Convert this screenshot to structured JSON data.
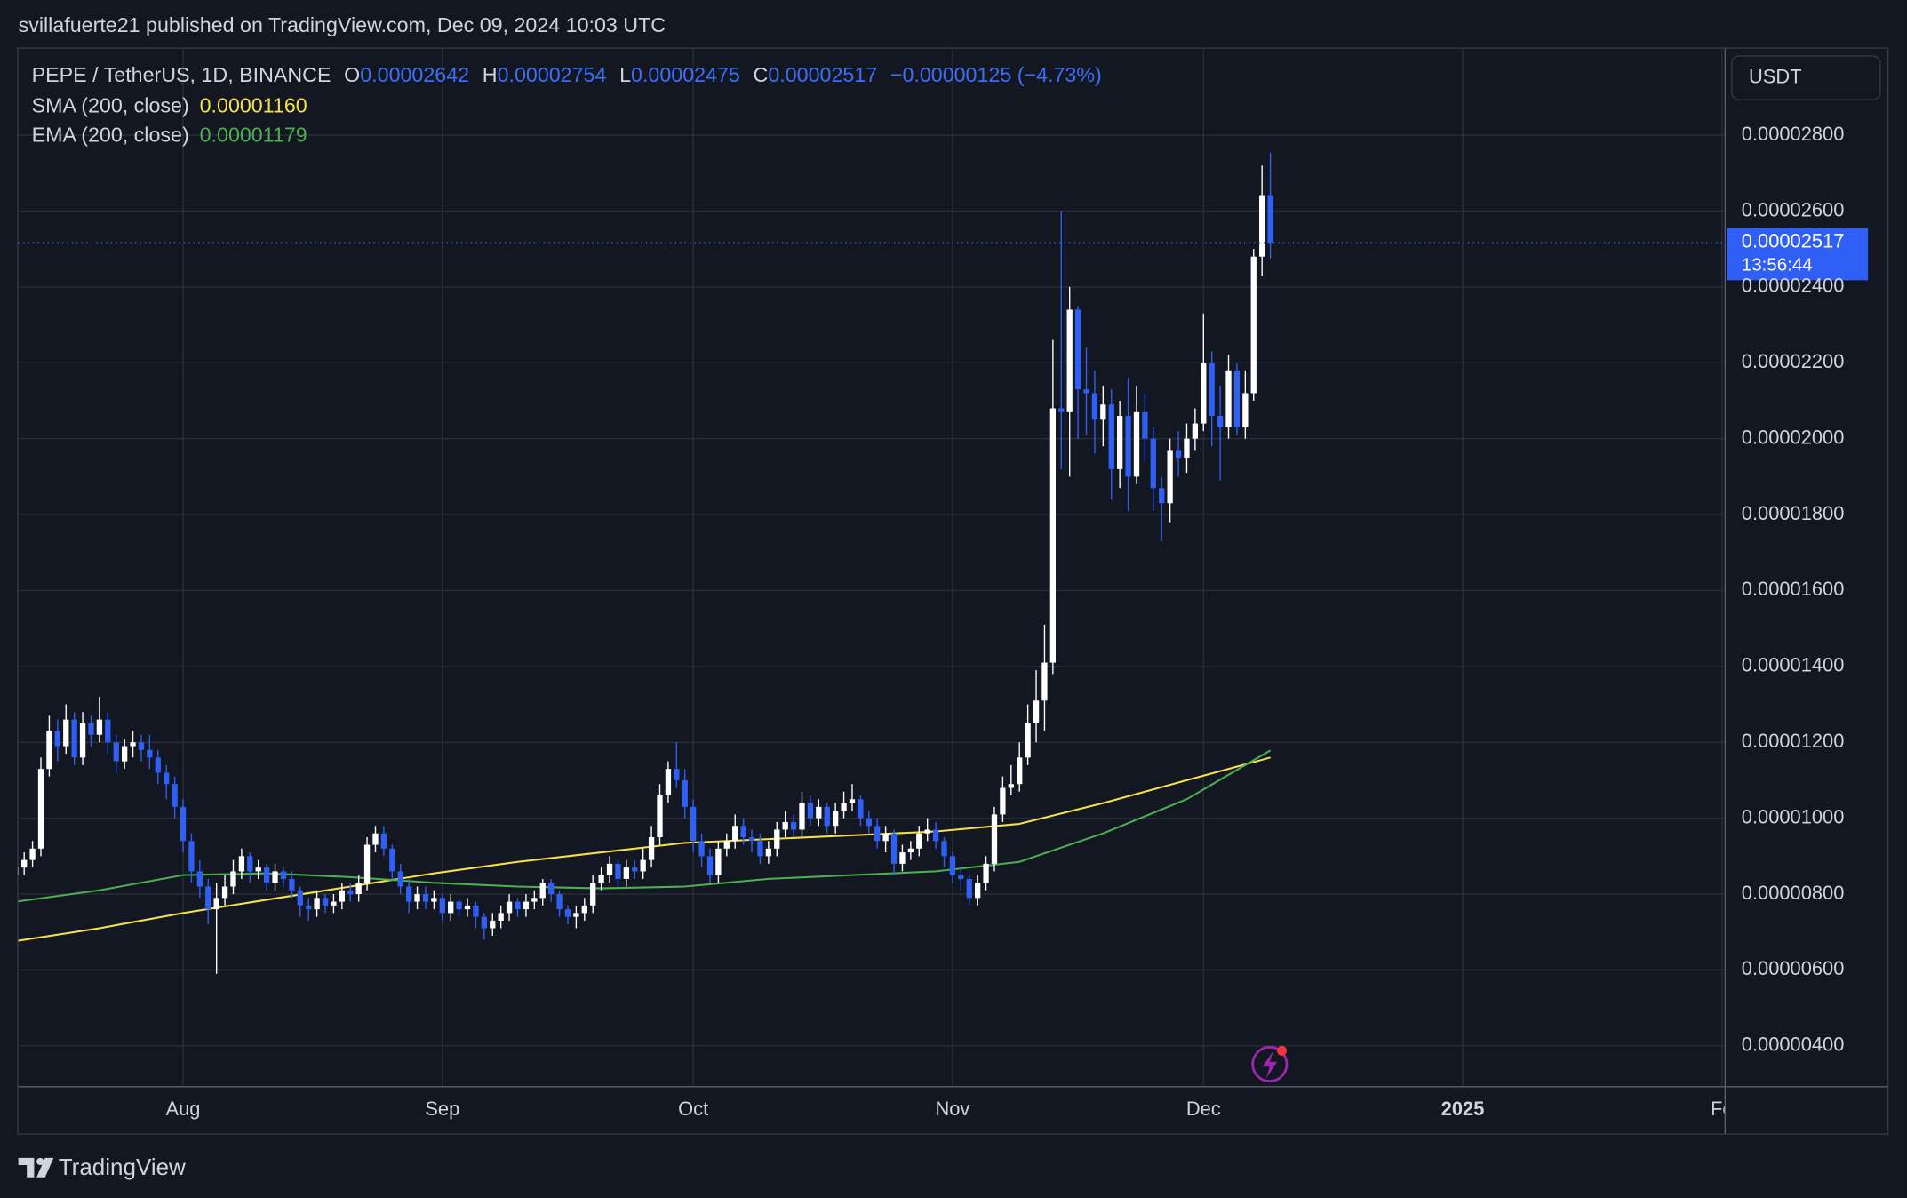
{
  "chart_data": {
    "type": "candlestick",
    "publisher": "svillafuerte21 published on TradingView.com, Dec 09, 2024 10:03 UTC",
    "symbol": "PEPE / TetherUS, 1D, BINANCE",
    "ohlc_header": [
      {
        "label": "O",
        "value": "0.00002642"
      },
      {
        "label": "H",
        "value": "0.00002754"
      },
      {
        "label": "L",
        "value": "0.00002475"
      },
      {
        "label": "C",
        "value": "0.00002517"
      }
    ],
    "change": "−0.00000125 (−4.73%)",
    "currency": "USDT",
    "last_price_label": "0.00002517",
    "countdown": "13:56:44",
    "brand": "TradingView",
    "up_color": "#ffffff",
    "down_color": "#2f5ff5",
    "grid": true,
    "ylim": [
      2.94e-06,
      3.028e-05
    ],
    "yticks": [
      {
        "value": 4e-06,
        "label": "0.00000400"
      },
      {
        "value": 6e-06,
        "label": "0.00000600"
      },
      {
        "value": 8e-06,
        "label": "0.00000800"
      },
      {
        "value": 1e-05,
        "label": "0.00001000"
      },
      {
        "value": 1.2e-05,
        "label": "0.00001200"
      },
      {
        "value": 1.4e-05,
        "label": "0.00001400"
      },
      {
        "value": 1.6e-05,
        "label": "0.00001600"
      },
      {
        "value": 1.8e-05,
        "label": "0.00001800"
      },
      {
        "value": 2e-05,
        "label": "0.00002000"
      },
      {
        "value": 2.2e-05,
        "label": "0.00002200"
      },
      {
        "value": 2.4e-05,
        "label": "0.00002400"
      },
      {
        "value": 2.6e-05,
        "label": "0.00002600"
      },
      {
        "value": 2.8e-05,
        "label": "0.00002800"
      }
    ],
    "xlim": [
      0.3,
      204.3
    ],
    "xticks": [
      {
        "value": 20,
        "label": "Aug"
      },
      {
        "value": 51,
        "label": "Sep"
      },
      {
        "value": 81,
        "label": "Oct"
      },
      {
        "value": 112,
        "label": "Nov"
      },
      {
        "value": 142,
        "label": "Dec"
      },
      {
        "value": 173,
        "label": "2025"
      },
      {
        "value": 204,
        "label": "Fe"
      }
    ],
    "open": [
      8.5e-06,
      8.7e-06,
      8.9e-06,
      9.2e-06,
      1.13e-05,
      1.23e-05,
      1.19e-05,
      1.26e-05,
      1.16e-05,
      1.25e-05,
      1.22e-05,
      1.26e-05,
      1.2e-05,
      1.15e-05,
      1.19e-05,
      1.2e-05,
      1.18e-05,
      1.16e-05,
      1.12e-05,
      1.09e-05,
      1.03e-05,
      9.4e-06,
      8.6e-06,
      8.2e-06,
      7.6e-06,
      7.9e-06,
      8.2e-06,
      8.6e-06,
      9e-06,
      8.6e-06,
      8.7e-06,
      8.3e-06,
      8.6e-06,
      8.4e-06,
      8.1e-06,
      7.7e-06,
      7.6e-06,
      7.9e-06,
      7.7e-06,
      7.8e-06,
      8.1e-06,
      8e-06,
      8.3e-06,
      9.3e-06,
      9.6e-06,
      9.2e-06,
      8.6e-06,
      8.2e-06,
      7.8e-06,
      8e-06,
      7.8e-06,
      7.9e-06,
      7.5e-06,
      7.8e-06,
      7.6e-06,
      7.7e-06,
      7.4e-06,
      7.1e-06,
      7.3e-06,
      7.5e-06,
      7.8e-06,
      7.6e-06,
      7.8e-06,
      7.9e-06,
      8.3e-06,
      8e-06,
      7.6e-06,
      7.4e-06,
      7.5e-06,
      7.7e-06,
      8.3e-06,
      8.5e-06,
      8.8e-06,
      8.4e-06,
      8.7e-06,
      8.6e-06,
      8.9e-06,
      9.5e-06,
      1.06e-05,
      1.13e-05,
      1.1e-05,
      1.03e-05,
      9.4e-06,
      9e-06,
      8.5e-06,
      9.2e-06,
      9.4e-06,
      9.8e-06,
      9.5e-06,
      9.4e-06,
      9e-06,
      9.2e-06,
      9.7e-06,
      9.9e-06,
      9.7e-06,
      1.04e-05,
      1e-05,
      1.03e-05,
      9.8e-06,
      1.02e-05,
      1.04e-05,
      1.05e-05,
      1e-05,
      9.8e-06,
      9.4e-06,
      9.6e-06,
      8.8e-06,
      9.1e-06,
      9.2e-06,
      9.6e-06,
      9.7e-06,
      9.4e-06,
      9e-06,
      8.5e-06,
      8.4e-06,
      7.9e-06,
      8.3e-06,
      8.8e-06,
      1.01e-05,
      1.08e-05,
      1.09e-05,
      1.16e-05,
      1.25e-05,
      1.31e-05,
      1.41e-05,
      2.08e-05,
      2.07e-05,
      2.34e-05,
      2.13e-05,
      2.12e-05,
      2.05e-05,
      2.09e-05,
      1.92e-05,
      2.06e-05,
      1.9e-05,
      2.07e-05,
      2e-05,
      1.87e-05,
      1.83e-05,
      1.97e-05,
      1.95e-05,
      2e-05,
      2.04e-05,
      2.2e-05,
      2.06e-05,
      2.03e-05,
      2.18e-05,
      2.03e-05,
      2.12e-05,
      2.48e-05,
      2.642e-05
    ],
    "high": [
      8.9e-06,
      9.1e-06,
      9.4e-06,
      1.16e-05,
      1.27e-05,
      1.26e-05,
      1.3e-05,
      1.28e-05,
      1.28e-05,
      1.27e-05,
      1.32e-05,
      1.28e-05,
      1.22e-05,
      1.21e-05,
      1.23e-05,
      1.22e-05,
      1.22e-05,
      1.18e-05,
      1.14e-05,
      1.11e-05,
      1.05e-05,
      9.6e-06,
      8.9e-06,
      8.4e-06,
      8.3e-06,
      8.5e-06,
      8.9e-06,
      9.2e-06,
      9.1e-06,
      8.9e-06,
      8.8e-06,
      8.8e-06,
      8.7e-06,
      8.6e-06,
      8.2e-06,
      7.9e-06,
      8.1e-06,
      8e-06,
      8e-06,
      8.3e-06,
      8.3e-06,
      8.5e-06,
      9.5e-06,
      9.8e-06,
      9.8e-06,
      9.3e-06,
      8.8e-06,
      8.4e-06,
      8.2e-06,
      8.2e-06,
      8.1e-06,
      8e-06,
      8e-06,
      7.9e-06,
      7.9e-06,
      7.8e-06,
      7.5e-06,
      7.5e-06,
      7.7e-06,
      8e-06,
      7.9e-06,
      8e-06,
      8.1e-06,
      8.4e-06,
      8.4e-06,
      8.1e-06,
      7.7e-06,
      7.7e-06,
      7.9e-06,
      8.5e-06,
      8.7e-06,
      9e-06,
      8.9e-06,
      8.9e-06,
      8.9e-06,
      9.2e-06,
      9.8e-06,
      1.09e-05,
      1.15e-05,
      1.2e-05,
      1.13e-05,
      1.05e-05,
      9.6e-06,
      9.2e-06,
      9.4e-06,
      9.6e-06,
      1.01e-05,
      1e-05,
      9.7e-06,
      9.6e-06,
      9.4e-06,
      9.9e-06,
      1.02e-05,
      1.01e-05,
      1.07e-05,
      1.06e-05,
      1.05e-05,
      1.04e-05,
      1.04e-05,
      1.07e-05,
      1.09e-05,
      1.06e-05,
      1.02e-05,
      1e-05,
      9.8e-06,
      9.7e-06,
      9.3e-06,
      9.4e-06,
      9.8e-06,
      1e-05,
      9.9e-06,
      9.5e-06,
      9.1e-06,
      8.7e-06,
      8.5e-06,
      8.5e-06,
      9e-06,
      1.03e-05,
      1.11e-05,
      1.14e-05,
      1.2e-05,
      1.3e-05,
      1.39e-05,
      1.51e-05,
      2.26e-05,
      2.6e-05,
      2.4e-05,
      2.35e-05,
      2.24e-05,
      2.18e-05,
      2.14e-05,
      2.13e-05,
      2.1e-05,
      2.16e-05,
      2.14e-05,
      2.12e-05,
      2.03e-05,
      1.9e-05,
      2e-05,
      2.02e-05,
      2.04e-05,
      2.08e-05,
      2.33e-05,
      2.23e-05,
      2.14e-05,
      2.22e-05,
      2.2e-05,
      2.18e-05,
      2.5e-05,
      2.72e-05,
      2.754e-05
    ],
    "low": [
      8.3e-06,
      8.5e-06,
      8.7e-06,
      9e-06,
      1.11e-05,
      1.15e-05,
      1.17e-05,
      1.14e-05,
      1.14e-05,
      1.19e-05,
      1.2e-05,
      1.17e-05,
      1.12e-05,
      1.13e-05,
      1.16e-05,
      1.15e-05,
      1.13e-05,
      1.09e-05,
      1.05e-05,
      1e-05,
      9.1e-06,
      8.3e-06,
      7.9e-06,
      7.2e-06,
      5.9e-06,
      7.7e-06,
      8e-06,
      8.4e-06,
      8.3e-06,
      8.4e-06,
      8.1e-06,
      8.1e-06,
      8.2e-06,
      7.9e-06,
      7.4e-06,
      7.3e-06,
      7.4e-06,
      7.5e-06,
      7.5e-06,
      7.6e-06,
      7.8e-06,
      7.8e-06,
      8.1e-06,
      9.1e-06,
      9e-06,
      8.4e-06,
      8e-06,
      7.5e-06,
      7.6e-06,
      7.6e-06,
      7.6e-06,
      7.3e-06,
      7.3e-06,
      7.4e-06,
      7.4e-06,
      7.1e-06,
      6.8e-06,
      6.9e-06,
      7.1e-06,
      7.3e-06,
      7.4e-06,
      7.4e-06,
      7.6e-06,
      7.7e-06,
      7.8e-06,
      7.4e-06,
      7.2e-06,
      7.1e-06,
      7.3e-06,
      7.5e-06,
      8.1e-06,
      8.3e-06,
      8.2e-06,
      8.2e-06,
      8.4e-06,
      8.4e-06,
      8.7e-06,
      9.3e-06,
      1.04e-05,
      1.08e-05,
      1e-05,
      9.1e-06,
      8.7e-06,
      8.3e-06,
      8.3e-06,
      9e-06,
      9.2e-06,
      9.3e-06,
      9.1e-06,
      8.8e-06,
      8.8e-06,
      9e-06,
      9.5e-06,
      9.5e-06,
      9.5e-06,
      9.8e-06,
      9.8e-06,
      9.6e-06,
      9.6e-06,
      1e-05,
      1.02e-05,
      9.8e-06,
      9.6e-06,
      9.2e-06,
      9.1e-06,
      8.5e-06,
      8.6e-06,
      8.9e-06,
      9e-06,
      9.4e-06,
      9.2e-06,
      8.7e-06,
      8.3e-06,
      8.1e-06,
      7.7e-06,
      7.7e-06,
      8.1e-06,
      8.6e-06,
      9.9e-06,
      1.06e-05,
      1.07e-05,
      1.14e-05,
      1.2e-05,
      1.23e-05,
      1.38e-05,
      1.92e-05,
      1.9e-05,
      2e-05,
      2.01e-05,
      1.96e-05,
      1.98e-05,
      1.84e-05,
      1.87e-05,
      1.81e-05,
      1.88e-05,
      1.94e-05,
      1.81e-05,
      1.73e-05,
      1.78e-05,
      1.9e-05,
      1.91e-05,
      1.97e-05,
      2.02e-05,
      1.98e-05,
      1.89e-05,
      2e-05,
      2.01e-05,
      2e-05,
      2.1e-05,
      2.43e-05,
      2.475e-05
    ],
    "close": [
      8.7e-06,
      8.9e-06,
      9.2e-06,
      1.13e-05,
      1.23e-05,
      1.19e-05,
      1.26e-05,
      1.16e-05,
      1.25e-05,
      1.22e-05,
      1.26e-05,
      1.2e-05,
      1.15e-05,
      1.19e-05,
      1.2e-05,
      1.18e-05,
      1.16e-05,
      1.12e-05,
      1.09e-05,
      1.03e-05,
      9.4e-06,
      8.6e-06,
      8.2e-06,
      7.6e-06,
      7.9e-06,
      8.2e-06,
      8.6e-06,
      9e-06,
      8.6e-06,
      8.7e-06,
      8.3e-06,
      8.6e-06,
      8.4e-06,
      8.1e-06,
      7.7e-06,
      7.6e-06,
      7.9e-06,
      7.7e-06,
      7.8e-06,
      8.1e-06,
      8e-06,
      8.3e-06,
      9.3e-06,
      9.6e-06,
      9.2e-06,
      8.6e-06,
      8.2e-06,
      7.8e-06,
      8e-06,
      7.8e-06,
      7.9e-06,
      7.5e-06,
      7.8e-06,
      7.6e-06,
      7.7e-06,
      7.4e-06,
      7.1e-06,
      7.3e-06,
      7.5e-06,
      7.8e-06,
      7.6e-06,
      7.8e-06,
      7.9e-06,
      8.3e-06,
      8e-06,
      7.6e-06,
      7.4e-06,
      7.5e-06,
      7.7e-06,
      8.3e-06,
      8.5e-06,
      8.8e-06,
      8.4e-06,
      8.7e-06,
      8.6e-06,
      8.9e-06,
      9.5e-06,
      1.06e-05,
      1.13e-05,
      1.1e-05,
      1.03e-05,
      9.4e-06,
      9e-06,
      8.5e-06,
      9.2e-06,
      9.4e-06,
      9.8e-06,
      9.5e-06,
      9.4e-06,
      9e-06,
      9.2e-06,
      9.7e-06,
      9.9e-06,
      9.7e-06,
      1.04e-05,
      1e-05,
      1.03e-05,
      9.8e-06,
      1.02e-05,
      1.04e-05,
      1.05e-05,
      1e-05,
      9.8e-06,
      9.4e-06,
      9.6e-06,
      8.8e-06,
      9.1e-06,
      9.2e-06,
      9.6e-06,
      9.7e-06,
      9.4e-06,
      9e-06,
      8.5e-06,
      8.4e-06,
      7.9e-06,
      8.3e-06,
      8.8e-06,
      1.01e-05,
      1.08e-05,
      1.09e-05,
      1.16e-05,
      1.25e-05,
      1.31e-05,
      1.41e-05,
      2.08e-05,
      2.07e-05,
      2.34e-05,
      2.13e-05,
      2.12e-05,
      2.05e-05,
      2.09e-05,
      1.92e-05,
      2.06e-05,
      1.9e-05,
      2.07e-05,
      2e-05,
      1.87e-05,
      1.83e-05,
      1.97e-05,
      1.95e-05,
      2e-05,
      2.04e-05,
      2.2e-05,
      2.06e-05,
      2.03e-05,
      2.18e-05,
      2.03e-05,
      2.12e-05,
      2.48e-05,
      2.642e-05,
      2.517e-05
    ],
    "lines": [
      {
        "name": "SMA (200, close)",
        "color": "#f5e14a",
        "value_label": "0.00001160",
        "x": [
          0,
          10,
          20,
          30,
          40,
          50,
          60,
          70,
          80,
          90,
          100,
          110,
          120,
          130,
          140,
          150
        ],
        "values": [
          6.76e-06,
          7.1e-06,
          7.5e-06,
          7.85e-06,
          8.2e-06,
          8.55e-06,
          8.85e-06,
          9.1e-06,
          9.35e-06,
          9.45e-06,
          9.55e-06,
          9.65e-06,
          9.85e-06,
          1.04e-05,
          1.1e-05,
          1.16e-05
        ]
      },
      {
        "name": "EMA (200, close)",
        "color": "#4caf50",
        "value_label": "0.00001179",
        "x": [
          0,
          10,
          20,
          30,
          40,
          50,
          60,
          70,
          80,
          90,
          100,
          110,
          120,
          130,
          140,
          150
        ],
        "values": [
          7.8e-06,
          8.1e-06,
          8.5e-06,
          8.55e-06,
          8.45e-06,
          8.3e-06,
          8.2e-06,
          8.15e-06,
          8.2e-06,
          8.4e-06,
          8.5e-06,
          8.6e-06,
          8.85e-06,
          9.6e-06,
          1.05e-05,
          1.179e-05
        ]
      }
    ]
  }
}
